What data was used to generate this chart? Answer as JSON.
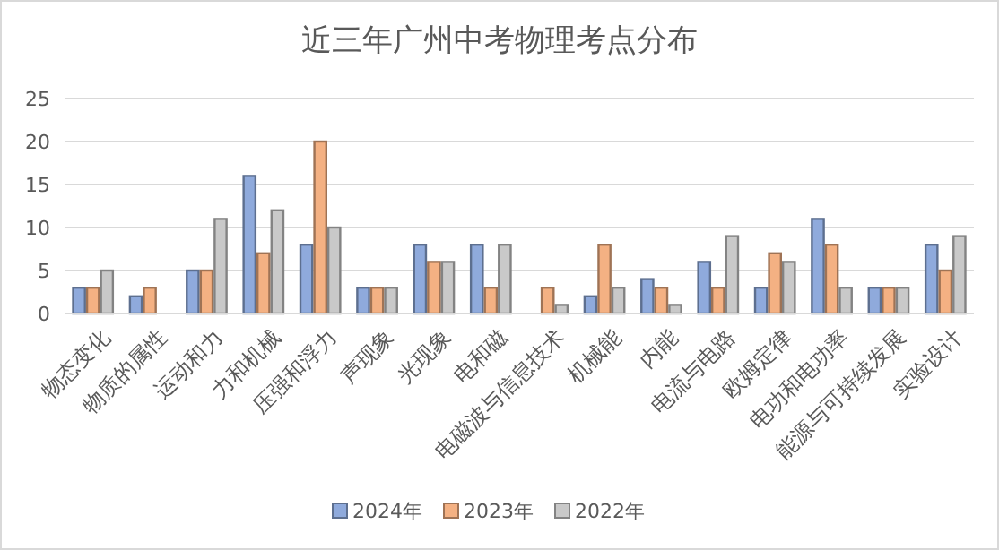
{
  "chart_data": {
    "type": "bar",
    "title": "近三年广州中考物理考点分布",
    "categories": [
      "物态变化",
      "物质的属性",
      "运动和力",
      "力和机械",
      "压强和浮力",
      "声现象",
      "光现象",
      "电和磁",
      "电磁波与信息技术",
      "机械能",
      "内能",
      "电流与电路",
      "欧姆定律",
      "电功和电功率",
      "能源与可持续发展",
      "实验设计"
    ],
    "series": [
      {
        "name": "2024年",
        "color": "#8faadc",
        "values": [
          3,
          2,
          5,
          16,
          8,
          3,
          8,
          8,
          0,
          2,
          4,
          6,
          3,
          11,
          3,
          8
        ]
      },
      {
        "name": "2023年",
        "color": "#f4b183",
        "values": [
          3,
          3,
          5,
          7,
          20,
          3,
          6,
          3,
          3,
          8,
          3,
          3,
          7,
          8,
          3,
          5
        ]
      },
      {
        "name": "2022年",
        "color": "#c9c9c9",
        "values": [
          5,
          0,
          11,
          12,
          10,
          3,
          6,
          8,
          1,
          3,
          1,
          9,
          6,
          3,
          3,
          9
        ]
      }
    ],
    "ylim": [
      0,
      25
    ],
    "yticks": [
      0,
      5,
      10,
      15,
      20,
      25
    ],
    "grid": "y",
    "legend": "bottom"
  }
}
